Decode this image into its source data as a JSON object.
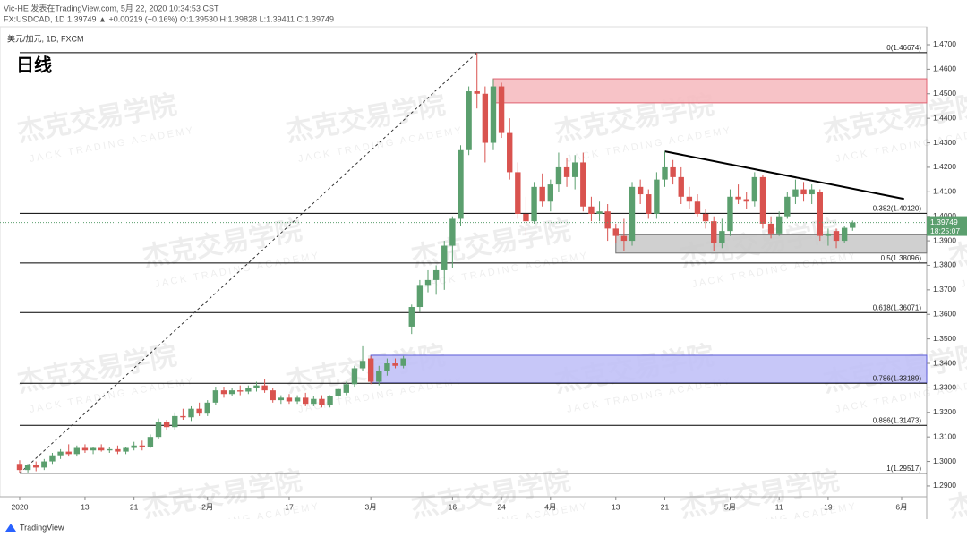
{
  "header": {
    "line1": "Vic-HE 发表在TradingView.com, 5月 22, 2020 10:34:53 CST",
    "line2": "FX:USDCAD, 1D 1.39749 ▲ +0.00219 (+0.16%) O:1.39530 H:1.39828 L:1.39411 C:1.39749"
  },
  "chart_data": {
    "type": "candlestick",
    "legend": "美元/加元, 1D, FXCM",
    "annotation": "日线",
    "up_color": "#5b9f6e",
    "down_color": "#d9534f",
    "open": [
      1.299,
      1.2965,
      1.2985,
      1.2975,
      1.3,
      1.3025,
      1.304,
      1.303,
      1.3055,
      1.3045,
      1.3055,
      1.3045,
      1.305,
      1.304,
      1.3055,
      1.3065,
      1.306,
      1.31,
      1.316,
      1.314,
      1.3185,
      1.318,
      1.3215,
      1.3195,
      1.324,
      1.329,
      1.3275,
      1.329,
      1.3285,
      1.33,
      1.331,
      1.329,
      1.325,
      1.326,
      1.3245,
      1.326,
      1.3235,
      1.3255,
      1.323,
      1.3265,
      1.328,
      1.3315,
      1.338,
      1.342,
      1.3325,
      1.337,
      1.34,
      1.339,
      1.355,
      1.363,
      1.372,
      1.374,
      1.378,
      1.388,
      1.399,
      1.427,
      1.451,
      1.45,
      1.43,
      1.453,
      1.434,
      1.418,
      1.401,
      1.398,
      1.412,
      1.406,
      1.413,
      1.42,
      1.416,
      1.422,
      1.404,
      1.401,
      1.402,
      1.395,
      1.392,
      1.39,
      1.412,
      1.409,
      1.401,
      1.415,
      1.42,
      1.416,
      1.408,
      1.406,
      1.401,
      1.398,
      1.389,
      1.394,
      1.408,
      1.407,
      1.406,
      1.416,
      1.397,
      1.393,
      1.4,
      1.408,
      1.411,
      1.409,
      1.41,
      1.392,
      1.394,
      1.39,
      1.3953
    ],
    "high": [
      1.3005,
      1.299,
      1.3,
      1.301,
      1.3035,
      1.305,
      1.307,
      1.3065,
      1.307,
      1.306,
      1.307,
      1.306,
      1.3065,
      1.306,
      1.308,
      1.3085,
      1.311,
      1.3175,
      1.317,
      1.32,
      1.3215,
      1.3225,
      1.324,
      1.325,
      1.3305,
      1.3305,
      1.33,
      1.331,
      1.331,
      1.3325,
      1.3335,
      1.33,
      1.327,
      1.3275,
      1.327,
      1.328,
      1.3265,
      1.327,
      1.327,
      1.33,
      1.3325,
      1.339,
      1.347,
      1.343,
      1.339,
      1.342,
      1.342,
      1.343,
      1.364,
      1.374,
      1.378,
      1.38,
      1.39,
      1.4,
      1.429,
      1.453,
      1.4667,
      1.453,
      1.456,
      1.4545,
      1.44,
      1.422,
      1.408,
      1.414,
      1.4175,
      1.415,
      1.426,
      1.424,
      1.425,
      1.426,
      1.408,
      1.406,
      1.405,
      1.397,
      1.399,
      1.414,
      1.415,
      1.411,
      1.418,
      1.4265,
      1.423,
      1.42,
      1.412,
      1.409,
      1.403,
      1.4,
      1.399,
      1.411,
      1.413,
      1.41,
      1.418,
      1.417,
      1.4,
      1.402,
      1.41,
      1.415,
      1.414,
      1.413,
      1.411,
      1.395,
      1.395,
      1.396,
      1.39828
    ],
    "low": [
      1.2951,
      1.2955,
      1.296,
      1.2965,
      1.299,
      1.301,
      1.302,
      1.302,
      1.3035,
      1.303,
      1.304,
      1.3035,
      1.303,
      1.303,
      1.3045,
      1.3045,
      1.3055,
      1.309,
      1.313,
      1.313,
      1.317,
      1.3165,
      1.3185,
      1.3185,
      1.323,
      1.326,
      1.3265,
      1.327,
      1.3275,
      1.3285,
      1.328,
      1.324,
      1.3235,
      1.3235,
      1.3235,
      1.3225,
      1.3225,
      1.322,
      1.322,
      1.3255,
      1.327,
      1.3305,
      1.337,
      1.3315,
      1.331,
      1.335,
      1.338,
      1.338,
      1.352,
      1.361,
      1.369,
      1.368,
      1.37,
      1.379,
      1.396,
      1.425,
      1.444,
      1.422,
      1.427,
      1.432,
      1.415,
      1.399,
      1.392,
      1.397,
      1.404,
      1.402,
      1.41,
      1.412,
      1.411,
      1.402,
      1.398,
      1.398,
      1.39,
      1.389,
      1.386,
      1.388,
      1.405,
      1.399,
      1.399,
      1.412,
      1.413,
      1.405,
      1.403,
      1.4,
      1.395,
      1.386,
      1.387,
      1.392,
      1.405,
      1.403,
      1.404,
      1.395,
      1.391,
      1.392,
      1.399,
      1.405,
      1.406,
      1.405,
      1.39,
      1.388,
      1.387,
      1.389,
      1.39411
    ],
    "close": [
      1.2965,
      1.2985,
      1.2975,
      1.3,
      1.3025,
      1.304,
      1.303,
      1.3055,
      1.3045,
      1.3055,
      1.3045,
      1.305,
      1.304,
      1.3055,
      1.3065,
      1.306,
      1.31,
      1.316,
      1.314,
      1.3185,
      1.318,
      1.3215,
      1.3195,
      1.324,
      1.329,
      1.3275,
      1.329,
      1.3285,
      1.33,
      1.331,
      1.329,
      1.325,
      1.326,
      1.3245,
      1.326,
      1.3235,
      1.3255,
      1.323,
      1.3265,
      1.3295,
      1.3315,
      1.338,
      1.341,
      1.3325,
      1.337,
      1.34,
      1.339,
      1.342,
      1.363,
      1.372,
      1.374,
      1.378,
      1.388,
      1.399,
      1.427,
      1.451,
      1.45,
      1.43,
      1.453,
      1.434,
      1.418,
      1.401,
      1.398,
      1.412,
      1.406,
      1.413,
      1.42,
      1.416,
      1.422,
      1.404,
      1.401,
      1.402,
      1.395,
      1.392,
      1.39,
      1.412,
      1.409,
      1.401,
      1.415,
      1.42,
      1.416,
      1.408,
      1.406,
      1.401,
      1.398,
      1.389,
      1.394,
      1.408,
      1.407,
      1.406,
      1.416,
      1.397,
      1.393,
      1.4,
      1.408,
      1.411,
      1.409,
      1.411,
      1.392,
      1.393,
      1.39,
      1.3953,
      1.39749
    ],
    "ylim": [
      1.2856,
      1.4773
    ],
    "yticks": [
      {
        "value": 1.29,
        "label": "1.2900"
      },
      {
        "value": 1.3,
        "label": "1.3000"
      },
      {
        "value": 1.31,
        "label": "1.3100"
      },
      {
        "value": 1.32,
        "label": "1.3200"
      },
      {
        "value": 1.33,
        "label": "1.3300"
      },
      {
        "value": 1.34,
        "label": "1.3400"
      },
      {
        "value": 1.35,
        "label": "1.3500"
      },
      {
        "value": 1.36,
        "label": "1.3600"
      },
      {
        "value": 1.37,
        "label": "1.3700"
      },
      {
        "value": 1.38,
        "label": "1.3800"
      },
      {
        "value": 1.39,
        "label": "1.3900"
      },
      {
        "value": 1.4,
        "label": "1.4000"
      },
      {
        "value": 1.41,
        "label": "1.4100"
      },
      {
        "value": 1.42,
        "label": "1.4200"
      },
      {
        "value": 1.43,
        "label": "1.4300"
      },
      {
        "value": 1.44,
        "label": "1.4400"
      },
      {
        "value": 1.45,
        "label": "1.4500"
      },
      {
        "value": 1.46,
        "label": "1.4600"
      },
      {
        "value": 1.47,
        "label": "1.4700"
      }
    ],
    "xlim": [
      -2.41,
      111.07
    ],
    "xticks": [
      {
        "value": 0,
        "label": "2020"
      },
      {
        "value": 8,
        "label": "13"
      },
      {
        "value": 14,
        "label": "21"
      },
      {
        "value": 23,
        "label": "2月"
      },
      {
        "value": 33,
        "label": "17"
      },
      {
        "value": 43,
        "label": "3月"
      },
      {
        "value": 53,
        "label": "16"
      },
      {
        "value": 59,
        "label": "24"
      },
      {
        "value": 65,
        "label": "4月"
      },
      {
        "value": 73,
        "label": "13"
      },
      {
        "value": 79,
        "label": "21"
      },
      {
        "value": 87,
        "label": "5月"
      },
      {
        "value": 93,
        "label": "11"
      },
      {
        "value": 99,
        "label": "19"
      },
      {
        "value": 108,
        "label": "6月"
      }
    ],
    "grid": false,
    "fib_levels": [
      {
        "value": 1.46674,
        "label": "0(1.46674)"
      },
      {
        "value": 1.4012,
        "label": "0.382(1.40120)"
      },
      {
        "value": 1.38096,
        "label": "0.5(1.38096)"
      },
      {
        "value": 1.36071,
        "label": "0.618(1.36071)"
      },
      {
        "value": 1.33189,
        "label": "0.786(1.33189)"
      },
      {
        "value": 1.31473,
        "label": "0.886(1.31473)"
      },
      {
        "value": 1.29517,
        "label": "1(1.29517)"
      }
    ],
    "fib_anchor_x": [
      0,
      56
    ],
    "zones": [
      {
        "top": 1.4561,
        "bottom": 1.4463,
        "start": 58,
        "color": "#f6b9bd",
        "border": "#e06070"
      },
      {
        "top": 1.3433,
        "bottom": 1.332,
        "start": 43,
        "color": "#bdbdf7",
        "border": "#5b5bd6"
      },
      {
        "top": 1.3925,
        "bottom": 1.385,
        "start": 73,
        "color": "#c8c8c8",
        "border": "#707070"
      }
    ],
    "trendline": {
      "x": [
        79,
        108.3
      ],
      "y": [
        1.4265,
        1.4071
      ]
    },
    "countdown": "18:25:07",
    "watermark": {
      "cn": "杰克交易学院",
      "en": "JACK TRADING ACADEMY"
    }
  },
  "footer": "TradingView"
}
